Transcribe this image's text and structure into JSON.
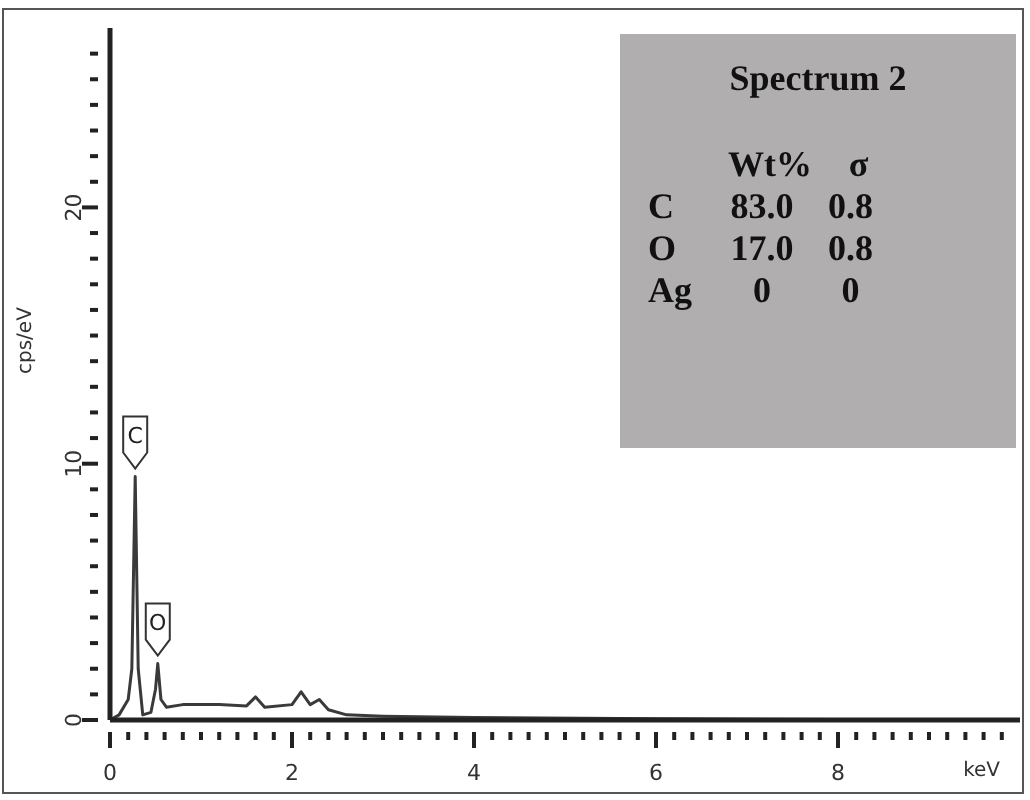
{
  "chart_data": {
    "type": "line",
    "title": "Spectrum 2",
    "xlabel": "keV",
    "ylabel": "cps/eV",
    "x": [
      0,
      0.1,
      0.2,
      0.24,
      0.277,
      0.31,
      0.36,
      0.45,
      0.5,
      0.525,
      0.56,
      0.62,
      0.8,
      1.2,
      1.5,
      1.6,
      1.7,
      2.0,
      2.1,
      2.2,
      2.3,
      2.4,
      2.6,
      3,
      4,
      6,
      8,
      10
    ],
    "series": [
      {
        "color": "#3a3a3a",
        "values": [
          0,
          0.2,
          0.8,
          2,
          9.5,
          2,
          0.2,
          0.3,
          1.2,
          2.2,
          0.8,
          0.5,
          0.6,
          0.6,
          0.55,
          0.9,
          0.5,
          0.6,
          1.1,
          0.6,
          0.8,
          0.4,
          0.2,
          0.15,
          0.1,
          0.05,
          0.02,
          0
        ]
      }
    ],
    "xlim": [
      0,
      10
    ],
    "ylim": [
      0,
      27
    ],
    "xticks": [
      0,
      {
        "value": 0.2,
        "label": null
      },
      {
        "value": 0.4,
        "label": null
      },
      {
        "value": 0.6,
        "label": null
      },
      {
        "value": 0.8,
        "label": null
      },
      {
        "value": 1,
        "label": null
      },
      {
        "value": 1.2,
        "label": null
      },
      {
        "value": 1.4,
        "label": null
      },
      {
        "value": 1.6,
        "label": null
      },
      {
        "value": 1.8,
        "label": null
      },
      2,
      {
        "value": 2.2,
        "label": null
      },
      {
        "value": 2.4,
        "label": null
      },
      {
        "value": 2.6,
        "label": null
      },
      {
        "value": 2.8,
        "label": null
      },
      {
        "value": 3,
        "label": null
      },
      {
        "value": 3.2,
        "label": null
      },
      {
        "value": 3.4,
        "label": null
      },
      {
        "value": 3.6,
        "label": null
      },
      {
        "value": 3.8,
        "label": null
      },
      4,
      {
        "value": 4.2,
        "label": null
      },
      {
        "value": 4.4,
        "label": null
      },
      {
        "value": 4.6,
        "label": null
      },
      {
        "value": 4.8,
        "label": null
      },
      {
        "value": 5,
        "label": null
      },
      {
        "value": 5.2,
        "label": null
      },
      {
        "value": 5.4,
        "label": null
      },
      {
        "value": 5.6,
        "label": null
      },
      {
        "value": 5.8,
        "label": null
      },
      6,
      {
        "value": 6.2,
        "label": null
      },
      {
        "value": 6.4,
        "label": null
      },
      {
        "value": 6.6,
        "label": null
      },
      {
        "value": 6.8,
        "label": null
      },
      {
        "value": 7,
        "label": null
      },
      {
        "value": 7.2,
        "label": null
      },
      {
        "value": 7.4,
        "label": null
      },
      {
        "value": 7.6,
        "label": null
      },
      {
        "value": 7.8,
        "label": null
      },
      8,
      {
        "value": 8.2,
        "label": null
      },
      {
        "value": 8.4,
        "label": null
      },
      {
        "value": 8.6,
        "label": null
      },
      {
        "value": 8.8,
        "label": null
      },
      {
        "value": 9,
        "label": null
      },
      {
        "value": 9.2,
        "label": null
      },
      {
        "value": 9.4,
        "label": null
      },
      {
        "value": 9.6,
        "label": null
      },
      {
        "value": 9.8,
        "label": null
      }
    ],
    "yticks": [
      0,
      {
        "value": 1,
        "label": null
      },
      {
        "value": 2,
        "label": null
      },
      {
        "value": 3,
        "label": null
      },
      {
        "value": 4,
        "label": null
      },
      {
        "value": 5,
        "label": null
      },
      {
        "value": 6,
        "label": null
      },
      {
        "value": 7,
        "label": null
      },
      {
        "value": 8,
        "label": null
      },
      {
        "value": 9,
        "label": null
      },
      10,
      {
        "value": 11,
        "label": null
      },
      {
        "value": 12,
        "label": null
      },
      {
        "value": 13,
        "label": null
      },
      {
        "value": 14,
        "label": null
      },
      {
        "value": 15,
        "label": null
      },
      {
        "value": 16,
        "label": null
      },
      {
        "value": 17,
        "label": null
      },
      {
        "value": 18,
        "label": null
      },
      {
        "value": 19,
        "label": null
      },
      20,
      {
        "value": 21,
        "label": null
      },
      {
        "value": 22,
        "label": null
      },
      {
        "value": 23,
        "label": null
      },
      {
        "value": 24,
        "label": null
      },
      {
        "value": 25,
        "label": null
      },
      {
        "value": 26,
        "label": null
      }
    ],
    "marker": "none",
    "grid": false,
    "legend": false,
    "annotations": [
      {
        "text": "C",
        "x": 0.277,
        "y": 9.5
      },
      {
        "text": "O",
        "x": 0.525,
        "y": 2.2
      },
      "Wt%",
      "σ",
      "C",
      "83.0",
      "0.8",
      "O",
      "17.0",
      "0.8",
      "Ag",
      "0",
      "0"
    ]
  }
}
